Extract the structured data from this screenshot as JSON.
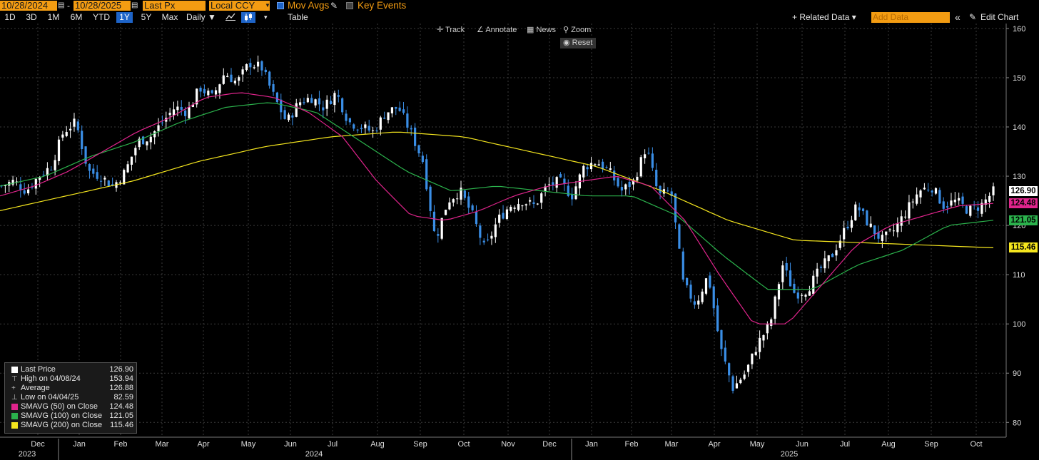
{
  "toolbar": {
    "start_date": "10/28/2024",
    "end_date": "10/28/2025",
    "date_sep": "-",
    "price_field": "Last Px",
    "currency": "Local CCY",
    "mov_avgs_label": "Mov Avgs",
    "key_events_label": "Key Events",
    "ranges": [
      "1D",
      "3D",
      "1M",
      "6M",
      "YTD",
      "1Y",
      "5Y",
      "Max"
    ],
    "selected_range": "1Y",
    "period": "Daily ▼",
    "table_label": "Table",
    "related_data": "+ Related Data ▾",
    "add_data_placeholder": "Add Data",
    "edit_chart": "Edit Chart",
    "collapse_icon": "«"
  },
  "chart_tools": {
    "track": "Track",
    "annotate": "Annotate",
    "news": "News",
    "zoom": "Zoom",
    "reset": "Reset"
  },
  "legend": {
    "rows": [
      {
        "name": "Last Price",
        "value": "126.90",
        "swatch": "#ffffff"
      },
      {
        "name": "High on 04/08/24",
        "value": "153.94",
        "glyph": "⊤"
      },
      {
        "name": "Average",
        "value": "126.88",
        "glyph": "+"
      },
      {
        "name": "Low on 04/04/25",
        "value": "82.59",
        "glyph": "⊥"
      },
      {
        "name": "SMAVG (50)  on Close",
        "value": "124.48",
        "swatch": "#e0248c"
      },
      {
        "name": "SMAVG (100)  on Close",
        "value": "121.05",
        "swatch": "#2bb24c"
      },
      {
        "name": "SMAVG (200)  on Close",
        "value": "115.46",
        "swatch": "#f5e61e"
      }
    ]
  },
  "price_labels": [
    {
      "value": "126.90",
      "bg": "#ffffff"
    },
    {
      "value": "124.48",
      "bg": "#e0248c"
    },
    {
      "value": "121.05",
      "bg": "#2bb24c"
    },
    {
      "value": "115.46",
      "bg": "#f5e61e"
    }
  ],
  "colors": {
    "accent": "#f39c12",
    "selected": "#1e64c8",
    "up_candle": "#ffffff",
    "down_candle": "#3a8ee6",
    "sma50": "#e0248c",
    "sma100": "#2bb24c",
    "sma200": "#f5e61e"
  },
  "chart_data": {
    "type": "line",
    "yaxis_ticks": [
      80,
      90,
      100,
      110,
      120,
      130,
      140,
      150,
      160
    ],
    "ylim": [
      77,
      161
    ],
    "grid": true,
    "month_ticks": [
      "Dec",
      "Jan",
      "Feb",
      "Mar",
      "Apr",
      "May",
      "Jun",
      "Jul",
      "Aug",
      "Sep",
      "Oct",
      "Nov",
      "Dec",
      "Jan",
      "Feb",
      "Mar",
      "Apr",
      "May",
      "Jun",
      "Jul",
      "Aug",
      "Sep",
      "Oct"
    ],
    "year_labels": [
      "2023",
      "2024",
      "2025"
    ],
    "series": [
      {
        "name": "Last Price",
        "values": [
          128,
          129,
          127,
          130,
          132,
          139,
          141,
          131,
          130,
          128,
          131,
          137,
          138,
          141,
          144,
          143,
          148,
          146,
          151,
          149,
          153,
          152,
          146,
          141,
          145,
          146,
          144,
          147,
          141,
          140,
          139,
          143,
          144,
          139,
          133,
          117,
          125,
          127,
          122,
          115,
          121,
          124,
          125,
          124,
          128,
          129,
          126,
          132,
          133,
          131,
          127,
          129,
          136,
          126,
          127,
          108,
          104,
          110,
          95,
          87,
          90,
          96,
          100,
          112,
          106,
          107,
          111,
          114,
          119,
          124,
          120,
          117,
          119,
          123,
          127,
          128,
          124,
          125,
          123,
          124,
          126.9
        ]
      },
      {
        "name": "SMAVG (50)",
        "values": [
          126,
          128,
          131,
          135,
          139,
          142,
          146,
          147,
          146,
          143,
          138,
          129,
          122,
          121,
          123,
          126,
          128,
          129,
          130,
          128,
          121,
          110,
          100,
          100,
          108,
          116,
          120,
          122,
          124,
          124.48
        ]
      },
      {
        "name": "SMAVG (100)",
        "values": [
          128,
          130,
          134,
          137,
          141,
          144,
          145,
          143,
          137,
          131,
          127,
          128,
          127,
          126,
          126,
          122,
          114,
          107,
          107,
          112,
          115,
          120,
          121.05
        ]
      },
      {
        "name": "SMAVG (200)",
        "values": [
          123,
          126,
          129,
          133,
          136,
          138,
          139,
          138,
          135,
          132,
          127,
          121,
          117,
          116.5,
          116,
          115.46
        ]
      }
    ]
  }
}
